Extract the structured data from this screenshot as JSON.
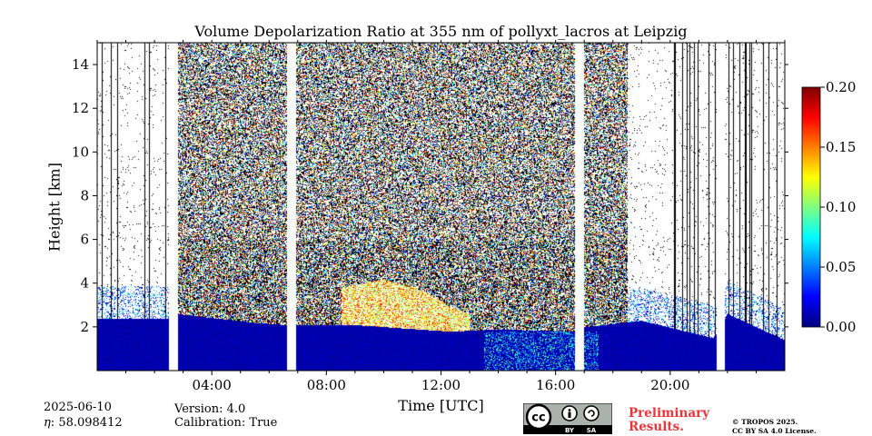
{
  "chart_data": {
    "type": "heatmap",
    "title": "Volume Depolarization Ratio at 355 nm of pollyxt_lacros at Leipzig",
    "xlabel": "Time [UTC]",
    "ylabel": "Height [km]",
    "xlim": [
      0,
      24
    ],
    "ylim": [
      0,
      15
    ],
    "x_ticks": [
      4,
      8,
      12,
      16,
      20
    ],
    "x_tick_labels": [
      "04:00",
      "08:00",
      "12:00",
      "16:00",
      "20:00"
    ],
    "y_ticks": [
      2,
      4,
      6,
      8,
      10,
      12,
      14
    ],
    "y_tick_labels": [
      "2",
      "4",
      "6",
      "8",
      "10",
      "12",
      "14"
    ],
    "colorbar": {
      "vmin": 0.0,
      "vmax": 0.2,
      "ticks": [
        0.0,
        0.05,
        0.1,
        0.15,
        0.2
      ],
      "tick_labels": [
        "0.00",
        "0.05",
        "0.10",
        "0.15",
        "0.20"
      ],
      "colormap": "jet"
    },
    "data_gaps_hours": [
      [
        2.48,
        2.8
      ],
      [
        6.6,
        6.93
      ],
      [
        16.65,
        16.98
      ],
      [
        21.6,
        21.9
      ]
    ],
    "boundary_layer_top_km": [
      [
        0.0,
        2.4
      ],
      [
        2.5,
        2.4
      ],
      [
        2.8,
        2.6
      ],
      [
        5.5,
        2.2
      ],
      [
        6.6,
        2.1
      ],
      [
        9.0,
        2.1
      ],
      [
        12.3,
        1.8
      ],
      [
        14.0,
        1.9
      ],
      [
        16.6,
        1.8
      ],
      [
        17.0,
        2.0
      ],
      [
        19.0,
        2.3
      ],
      [
        21.5,
        1.5
      ],
      [
        22.0,
        2.6
      ],
      [
        24.0,
        1.4
      ]
    ],
    "aerosol_layer_top_km": [
      [
        8.5,
        3.8
      ],
      [
        10.0,
        4.2
      ],
      [
        11.5,
        3.6
      ],
      [
        12.2,
        3.0
      ],
      [
        13.0,
        2.6
      ]
    ]
  },
  "info": {
    "date": "2025-06-10",
    "eta": "58.098412",
    "version": "Version: 4.0",
    "calibration": "Calibration: True",
    "preliminary": "Preliminary\nResults.",
    "copyright_1": "© TROPOS 2025.",
    "copyright_2": "CC BY SA 4.0 License.",
    "cc_label": "cc",
    "by_label": "BY",
    "sa_label": "SA"
  },
  "colors": {
    "low": "#0044cc",
    "high": "#cc0000"
  }
}
